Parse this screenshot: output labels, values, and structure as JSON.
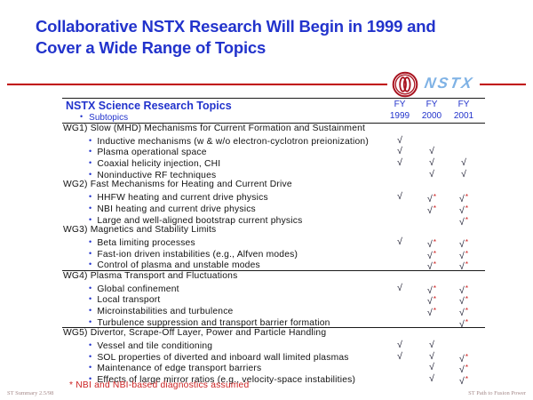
{
  "slide": {
    "title_line1": "Collaborative NSTX Research Will Begin in 1999 and",
    "title_line2": "Cover a Wide Range of Topics",
    "logo_text": "NSTX",
    "footer_left": "ST Summary 2.5/98",
    "footer_right": "ST Path to Fusion Power"
  },
  "table": {
    "title": "NSTX Science Research Topics",
    "subtitle": "Subtopics",
    "columns": [
      {
        "line1": "FY",
        "line2": "1999"
      },
      {
        "line1": "FY",
        "line2": "2000"
      },
      {
        "line1": "FY",
        "line2": "2001"
      }
    ],
    "legend": {
      "check": "√",
      "star": "*",
      "bullet": "•"
    },
    "sections": [
      {
        "heading": "WG1) Slow (MHD) Mechanisms for Current Formation and Sustainment",
        "divider": false,
        "rows": [
          {
            "label": "Inductive mechanisms (w & w/o electron-cyclotron preionization)",
            "marks": [
              "check",
              "",
              ""
            ]
          },
          {
            "label": "Plasma operational space",
            "marks": [
              "check",
              "check",
              ""
            ]
          },
          {
            "label": "Coaxial helicity injection, CHI",
            "marks": [
              "check",
              "check",
              "check"
            ]
          },
          {
            "label": "Noninductive RF techniques",
            "marks": [
              "",
              "check",
              "check"
            ]
          }
        ]
      },
      {
        "heading": "WG2) Fast Mechanisms for Heating and Current Drive",
        "divider": false,
        "rows": [
          {
            "label": "HHFW heating and current drive physics",
            "marks": [
              "check",
              "check-star",
              "check-star"
            ]
          },
          {
            "label": "NBI heating and current drive physics",
            "marks": [
              "",
              "check-star",
              "check-star"
            ]
          },
          {
            "label": "Large and well-aligned bootstrap current physics",
            "marks": [
              "",
              "",
              "check-star"
            ]
          }
        ]
      },
      {
        "heading": "WG3) Magnetics and Stability Limits",
        "divider": false,
        "rows": [
          {
            "label": "Beta limiting processes",
            "marks": [
              "check",
              "check-star",
              "check-star"
            ]
          },
          {
            "label": "Fast-ion driven instabilities (e.g., Alfven modes)",
            "marks": [
              "",
              "check-star",
              "check-star"
            ]
          },
          {
            "label": "Control of plasma and unstable modes",
            "marks": [
              "",
              "check-star",
              "check-star"
            ]
          }
        ]
      },
      {
        "heading": "WG4) Plasma Transport and Fluctuations",
        "divider": true,
        "rows": [
          {
            "label": "Global confinement",
            "marks": [
              "check",
              "check-star",
              "check-star"
            ]
          },
          {
            "label": "Local transport",
            "marks": [
              "",
              "check-star",
              "check-star"
            ]
          },
          {
            "label": "Microinstabilities and turbulence",
            "marks": [
              "",
              "check-star",
              "check-star"
            ]
          },
          {
            "label": "Turbulence suppression and transport barrier formation",
            "marks": [
              "",
              "",
              "check-star"
            ]
          }
        ]
      },
      {
        "heading": "WG5) Divertor, Scrape-Off Layer, Power and Particle Handling",
        "divider": true,
        "rows": [
          {
            "label": "Vessel and tile conditioning",
            "marks": [
              "check",
              "check",
              ""
            ]
          },
          {
            "label": "SOL properties of diverted and inboard wall limited plasmas",
            "marks": [
              "check",
              "check",
              "check-star"
            ]
          },
          {
            "label": "Maintenance of edge transport barriers",
            "marks": [
              "",
              "check",
              "check-star"
            ]
          },
          {
            "label": "Effects of large mirror ratios (e.g., velocity-space instabilities)",
            "marks": [
              "",
              "check",
              "check-star"
            ]
          }
        ]
      }
    ],
    "footnote": "* NBI and NBI-based diagnostics assumed"
  },
  "colors": {
    "title_blue": "#2233CC",
    "table_blue": "#2233CC",
    "rule_red": "#C00000",
    "footnote_red": "#CC2222",
    "check_black": "#15152A",
    "logo_text_blue": "#7FB2E5",
    "footer_gray": "#A58A8A"
  }
}
